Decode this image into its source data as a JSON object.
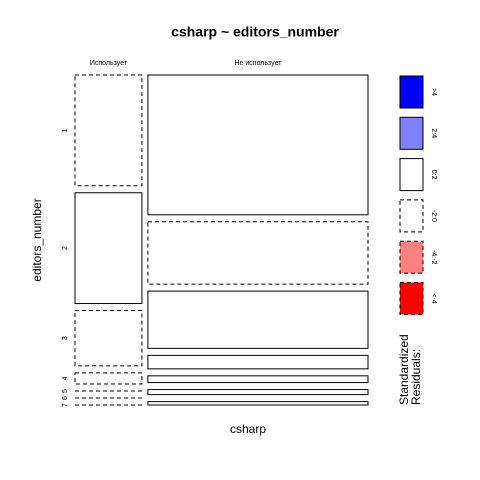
{
  "chart_data": {
    "type": "mosaic",
    "title": "csharp ~ editors_number",
    "x_label": "csharp",
    "y_label": "editors_number",
    "x_categories": [
      "Использует",
      "Не использует"
    ],
    "y_categories": [
      "1",
      "2",
      "3",
      "4",
      "5",
      "6",
      "7"
    ],
    "counts": [
      [
        20,
        20,
        10,
        2,
        0,
        0,
        0
      ],
      [
        83,
        37,
        34,
        8,
        4,
        3,
        2
      ]
    ],
    "legend": {
      "title": [
        "Standardized",
        "Residuals:"
      ],
      "breaks": [
        4,
        2,
        0,
        -2,
        -4
      ],
      "levels": [
        {
          "label": ">4",
          "color": "#0000ff",
          "border": "solid"
        },
        {
          "label": "2:4",
          "color": "#8080ff",
          "border": "solid"
        },
        {
          "label": "0:2",
          "color": "#ffffff",
          "border": "solid"
        },
        {
          "label": "-2:0",
          "color": "#ffffff",
          "border": "dashed"
        },
        {
          "label": "-4:-2",
          "color": "#ff8080",
          "border": "dashed"
        },
        {
          "label": "<-4",
          "color": "#ff0000",
          "border": "dashed"
        }
      ]
    }
  }
}
